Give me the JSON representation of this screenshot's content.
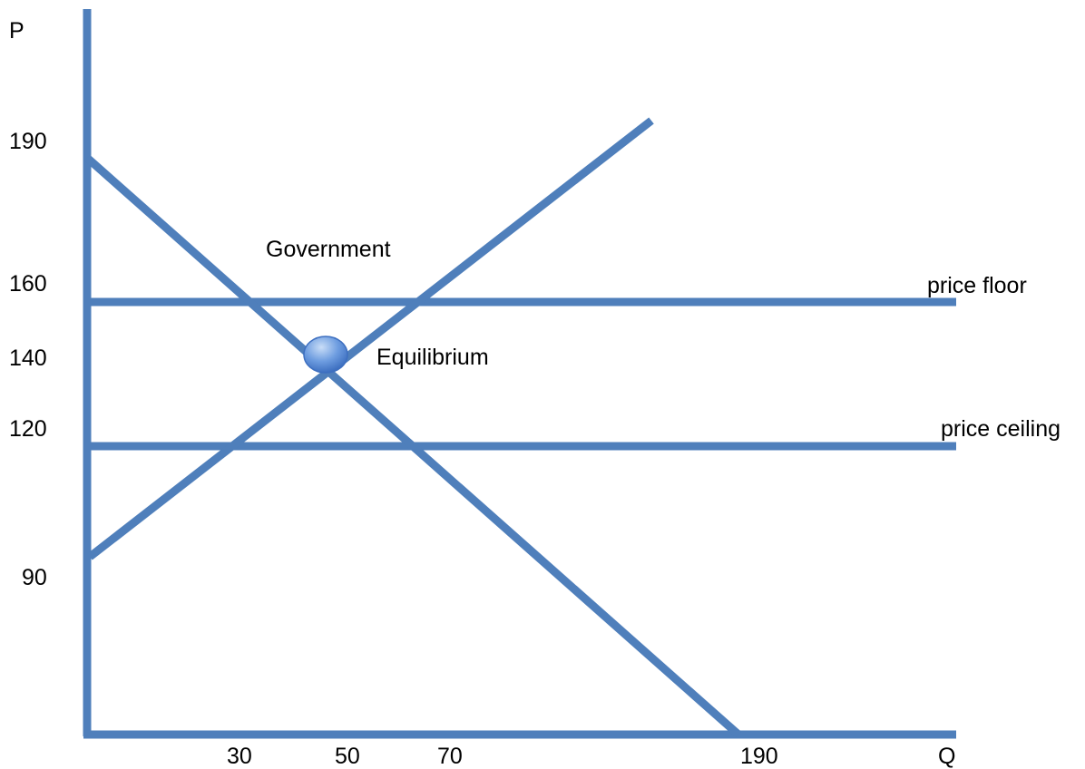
{
  "diagram": {
    "axes": {
      "y_label": "P",
      "x_label": "Q"
    },
    "y_ticks": [
      "190",
      "160",
      "140",
      "120",
      "90"
    ],
    "x_ticks": [
      "30",
      "50",
      "70",
      "190"
    ],
    "labels": {
      "government": "Government",
      "equilibrium": "Equilibrium",
      "price_floor": "price floor",
      "price_ceiling": "price ceiling"
    },
    "colors": {
      "line": "#4f7fbb",
      "marker_fill": "#5b8fd9",
      "text": "#000000"
    }
  }
}
